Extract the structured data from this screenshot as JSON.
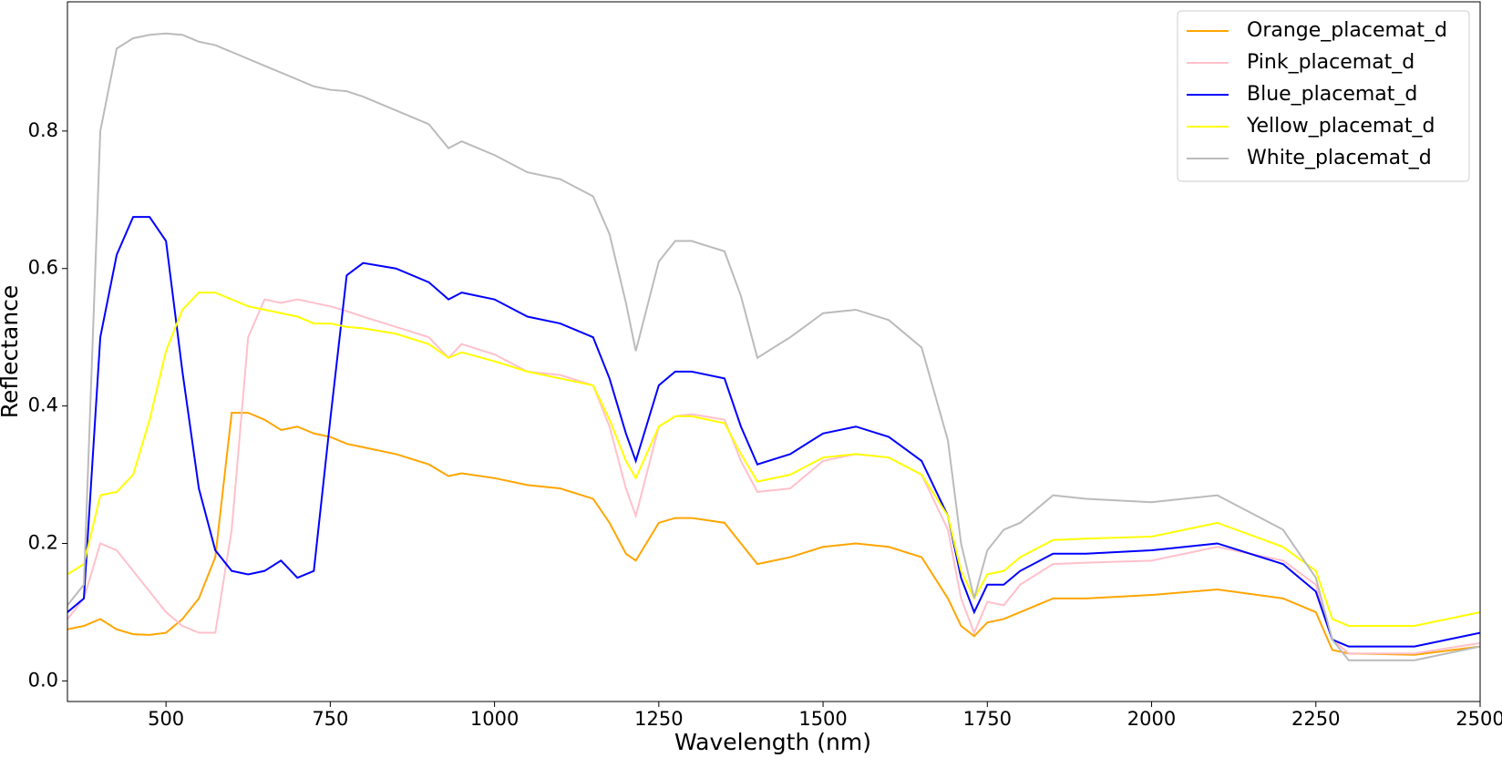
{
  "chart_data": {
    "type": "line",
    "x_label": "Wavelength (nm)",
    "y_label": "Reflectance",
    "x": [
      350,
      375,
      400,
      425,
      450,
      475,
      500,
      525,
      550,
      575,
      600,
      625,
      650,
      675,
      700,
      725,
      750,
      775,
      800,
      850,
      900,
      930,
      950,
      1000,
      1050,
      1100,
      1150,
      1175,
      1200,
      1215,
      1250,
      1275,
      1300,
      1350,
      1375,
      1400,
      1450,
      1500,
      1550,
      1600,
      1650,
      1690,
      1710,
      1730,
      1750,
      1775,
      1800,
      1850,
      1900,
      2000,
      2100,
      2200,
      2250,
      2275,
      2300,
      2400,
      2500
    ],
    "series": [
      {
        "name": "Orange_placemat_d",
        "color": "#ffa500",
        "values": [
          0.075,
          0.08,
          0.09,
          0.075,
          0.068,
          0.067,
          0.07,
          0.09,
          0.12,
          0.18,
          0.39,
          0.39,
          0.38,
          0.365,
          0.37,
          0.36,
          0.355,
          0.345,
          0.34,
          0.33,
          0.315,
          0.298,
          0.302,
          0.295,
          0.285,
          0.28,
          0.265,
          0.23,
          0.185,
          0.175,
          0.23,
          0.237,
          0.237,
          0.23,
          0.2,
          0.17,
          0.18,
          0.195,
          0.2,
          0.195,
          0.18,
          0.12,
          0.08,
          0.065,
          0.085,
          0.09,
          0.1,
          0.12,
          0.12,
          0.125,
          0.133,
          0.12,
          0.1,
          0.045,
          0.04,
          0.038,
          0.05
        ]
      },
      {
        "name": "Pink_placemat_d",
        "color": "#ffc0cb",
        "values": [
          0.09,
          0.12,
          0.2,
          0.19,
          0.16,
          0.13,
          0.1,
          0.08,
          0.07,
          0.07,
          0.22,
          0.5,
          0.555,
          0.55,
          0.555,
          0.55,
          0.545,
          0.538,
          0.53,
          0.515,
          0.5,
          0.47,
          0.49,
          0.475,
          0.45,
          0.445,
          0.43,
          0.37,
          0.28,
          0.24,
          0.37,
          0.385,
          0.388,
          0.38,
          0.32,
          0.275,
          0.28,
          0.32,
          0.33,
          0.325,
          0.3,
          0.22,
          0.12,
          0.07,
          0.115,
          0.11,
          0.14,
          0.17,
          0.172,
          0.175,
          0.195,
          0.175,
          0.14,
          0.06,
          0.04,
          0.04,
          0.055
        ]
      },
      {
        "name": "Blue_placemat_d",
        "color": "#0000ff",
        "values": [
          0.1,
          0.12,
          0.5,
          0.62,
          0.675,
          0.675,
          0.64,
          0.45,
          0.28,
          0.19,
          0.16,
          0.155,
          0.16,
          0.175,
          0.15,
          0.16,
          0.38,
          0.59,
          0.608,
          0.6,
          0.58,
          0.555,
          0.565,
          0.555,
          0.53,
          0.52,
          0.5,
          0.44,
          0.36,
          0.32,
          0.43,
          0.45,
          0.45,
          0.44,
          0.37,
          0.315,
          0.33,
          0.36,
          0.37,
          0.355,
          0.32,
          0.24,
          0.15,
          0.1,
          0.14,
          0.14,
          0.16,
          0.185,
          0.185,
          0.19,
          0.2,
          0.17,
          0.13,
          0.06,
          0.05,
          0.05,
          0.07
        ]
      },
      {
        "name": "Yellow_placemat_d",
        "color": "#ffff00",
        "values": [
          0.155,
          0.17,
          0.27,
          0.275,
          0.3,
          0.38,
          0.48,
          0.54,
          0.565,
          0.565,
          0.555,
          0.545,
          0.54,
          0.535,
          0.53,
          0.52,
          0.52,
          0.515,
          0.513,
          0.505,
          0.49,
          0.47,
          0.478,
          0.465,
          0.45,
          0.44,
          0.43,
          0.38,
          0.32,
          0.295,
          0.37,
          0.385,
          0.385,
          0.375,
          0.33,
          0.29,
          0.3,
          0.325,
          0.33,
          0.325,
          0.3,
          0.24,
          0.16,
          0.12,
          0.155,
          0.16,
          0.18,
          0.205,
          0.207,
          0.21,
          0.23,
          0.195,
          0.16,
          0.09,
          0.08,
          0.08,
          0.1
        ]
      },
      {
        "name": "White_placemat_d",
        "color": "#bbbbbb",
        "values": [
          0.11,
          0.14,
          0.8,
          0.92,
          0.935,
          0.94,
          0.942,
          0.94,
          0.93,
          0.925,
          0.915,
          0.905,
          0.895,
          0.885,
          0.875,
          0.865,
          0.86,
          0.858,
          0.85,
          0.83,
          0.81,
          0.775,
          0.785,
          0.765,
          0.74,
          0.73,
          0.705,
          0.65,
          0.55,
          0.48,
          0.61,
          0.64,
          0.64,
          0.625,
          0.56,
          0.47,
          0.5,
          0.535,
          0.54,
          0.525,
          0.485,
          0.35,
          0.2,
          0.12,
          0.19,
          0.22,
          0.23,
          0.27,
          0.265,
          0.26,
          0.27,
          0.22,
          0.15,
          0.06,
          0.03,
          0.03,
          0.05
        ]
      }
    ],
    "xlim": [
      350,
      2500
    ],
    "ylim": [
      -0.03,
      0.988
    ],
    "xticks": [
      500,
      750,
      1000,
      1250,
      1500,
      1750,
      2000,
      2250,
      2500
    ],
    "yticks": [
      {
        "value": 0,
        "label": "0.0"
      },
      0.2,
      0.4,
      0.6,
      0.8
    ],
    "grid": false,
    "legend": "upper right"
  }
}
